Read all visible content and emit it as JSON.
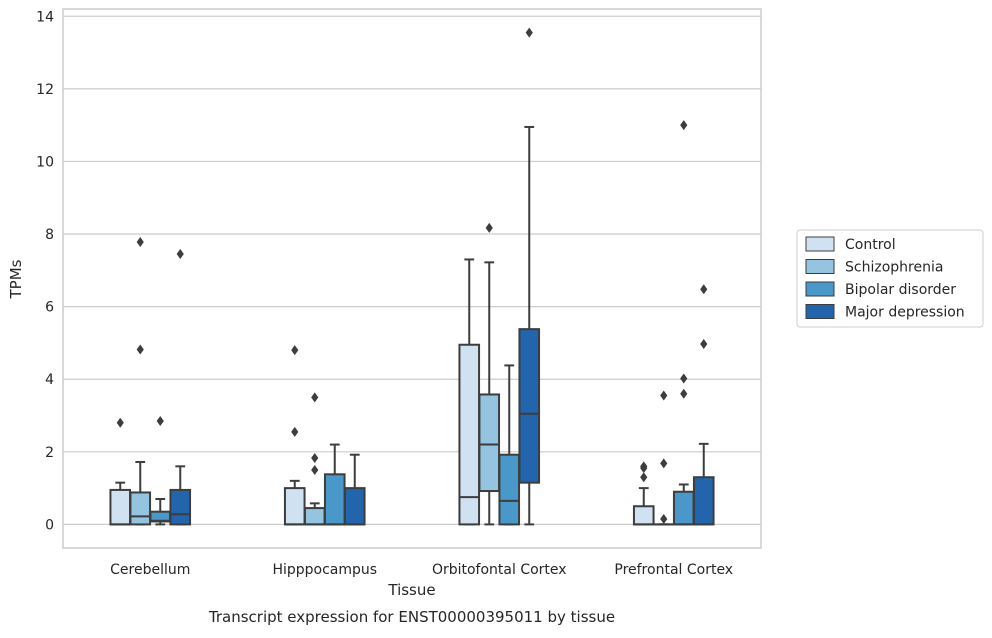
{
  "chart_data": {
    "type": "boxplot",
    "title": "Transcript expression for ENST00000395011 by tissue",
    "xlabel": "Tissue",
    "ylabel": "TPMs",
    "ylim": [
      -0.65,
      14.2
    ],
    "yticks": [
      0,
      2,
      4,
      6,
      8,
      10,
      12,
      14
    ],
    "grid": true,
    "legend_position": "right",
    "categories": [
      "Cerebellum",
      "Hipppocampus",
      "Orbitofontal Cortex",
      "Prefrontal Cortex"
    ],
    "series": [
      {
        "name": "Control",
        "color": "#d0e1f2",
        "boxes": [
          {
            "whislo": 0,
            "q1": 0,
            "med": 0,
            "q3": 0.95,
            "whishi": 1.15,
            "fliers": [
              2.8
            ]
          },
          {
            "whislo": 0,
            "q1": 0,
            "med": 0,
            "q3": 1.0,
            "whishi": 1.2,
            "fliers": [
              2.55,
              4.8
            ]
          },
          {
            "whislo": 0,
            "q1": 0,
            "med": 0.75,
            "q3": 4.95,
            "whishi": 7.3,
            "fliers": []
          },
          {
            "whislo": 0,
            "q1": 0,
            "med": 0,
            "q3": 0.5,
            "whishi": 1.0,
            "fliers": [
              1.3,
              1.55,
              1.6
            ]
          }
        ]
      },
      {
        "name": "Schizophrenia",
        "color": "#94c4df",
        "boxes": [
          {
            "whislo": 0,
            "q1": 0,
            "med": 0.22,
            "q3": 0.88,
            "whishi": 1.72,
            "fliers": [
              4.82,
              7.78
            ]
          },
          {
            "whislo": 0,
            "q1": 0,
            "med": 0,
            "q3": 0.45,
            "whishi": 0.58,
            "fliers": [
              1.5,
              1.83,
              3.5
            ]
          },
          {
            "whislo": 0,
            "q1": 0.92,
            "med": 2.2,
            "q3": 3.58,
            "whishi": 7.22,
            "fliers": [
              8.17
            ]
          },
          {
            "whislo": 0,
            "q1": 0,
            "med": 0,
            "q3": 0,
            "whishi": 0,
            "fliers": [
              0.15,
              1.68,
              3.55
            ]
          }
        ]
      },
      {
        "name": "Bipolar disorder",
        "color": "#4a98c9",
        "boxes": [
          {
            "whislo": 0,
            "q1": 0.08,
            "med": 0.1,
            "q3": 0.35,
            "whishi": 0.7,
            "fliers": [
              2.85
            ]
          },
          {
            "whislo": 0,
            "q1": 0,
            "med": 0,
            "q3": 1.38,
            "whishi": 2.2,
            "fliers": []
          },
          {
            "whislo": 0,
            "q1": 0,
            "med": 0.65,
            "q3": 1.92,
            "whishi": 4.38,
            "fliers": []
          },
          {
            "whislo": 0,
            "q1": 0,
            "med": 0,
            "q3": 0.9,
            "whishi": 1.1,
            "fliers": [
              3.6,
              4.02,
              11.0
            ]
          }
        ]
      },
      {
        "name": "Major depression",
        "color": "#2265ac",
        "boxes": [
          {
            "whislo": 0,
            "q1": 0,
            "med": 0.28,
            "q3": 0.95,
            "whishi": 1.6,
            "fliers": [
              7.45
            ]
          },
          {
            "whislo": 0,
            "q1": 0,
            "med": 0,
            "q3": 1.0,
            "whishi": 1.92,
            "fliers": []
          },
          {
            "whislo": 0,
            "q1": 1.15,
            "med": 3.05,
            "q3": 5.38,
            "whishi": 10.95,
            "fliers": [
              13.55
            ]
          },
          {
            "whislo": 0,
            "q1": 0,
            "med": 0,
            "q3": 1.3,
            "whishi": 2.22,
            "fliers": [
              4.97,
              6.48
            ]
          }
        ]
      }
    ]
  }
}
